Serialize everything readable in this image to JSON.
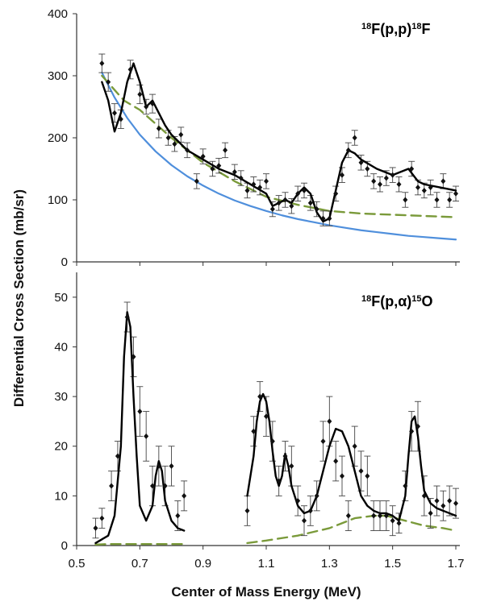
{
  "chart_data": [
    {
      "type": "scatter",
      "id": "top",
      "title": "18F(p,p)18F",
      "title_parts": [
        {
          "text": "18",
          "sup": true
        },
        {
          "text": "F(p,p)",
          "sup": false
        },
        {
          "text": "18",
          "sup": true
        },
        {
          "text": "F",
          "sup": false
        }
      ],
      "xlim": [
        0.5,
        1.7
      ],
      "ylim": [
        0,
        400
      ],
      "yticks": [
        "0",
        "100",
        "200",
        "300",
        "400"
      ],
      "colors": {
        "points": "#111111",
        "fit": "#000000",
        "dashed": "#7a9a3a",
        "coulomb": "#4f8fdc"
      },
      "points": {
        "x": [
          0.58,
          0.6,
          0.62,
          0.64,
          0.67,
          0.7,
          0.72,
          0.74,
          0.76,
          0.79,
          0.81,
          0.83,
          0.85,
          0.88,
          0.9,
          0.93,
          0.95,
          0.97,
          1.0,
          1.02,
          1.04,
          1.06,
          1.08,
          1.1,
          1.12,
          1.14,
          1.16,
          1.18,
          1.2,
          1.22,
          1.24,
          1.26,
          1.28,
          1.3,
          1.32,
          1.34,
          1.36,
          1.38,
          1.4,
          1.42,
          1.44,
          1.46,
          1.48,
          1.5,
          1.52,
          1.54,
          1.56,
          1.58,
          1.6,
          1.62,
          1.64,
          1.66,
          1.68,
          1.7
        ],
        "y": [
          320,
          290,
          240,
          230,
          310,
          270,
          250,
          255,
          215,
          200,
          190,
          205,
          180,
          130,
          170,
          150,
          155,
          180,
          145,
          135,
          115,
          125,
          120,
          130,
          85,
          95,
          100,
          90,
          110,
          115,
          95,
          85,
          70,
          70,
          110,
          140,
          180,
          200,
          160,
          150,
          130,
          125,
          135,
          140,
          125,
          100,
          150,
          120,
          115,
          120,
          100,
          130,
          100,
          110
        ],
        "err": [
          15,
          15,
          15,
          15,
          15,
          15,
          12,
          15,
          15,
          12,
          12,
          12,
          12,
          12,
          12,
          12,
          12,
          12,
          12,
          12,
          12,
          12,
          12,
          12,
          12,
          12,
          12,
          12,
          12,
          12,
          12,
          12,
          12,
          12,
          12,
          12,
          12,
          12,
          12,
          12,
          12,
          12,
          12,
          12,
          12,
          12,
          12,
          12,
          12,
          12,
          12,
          12,
          12,
          12
        ]
      },
      "fit_curve": {
        "x": [
          0.58,
          0.6,
          0.62,
          0.64,
          0.66,
          0.68,
          0.7,
          0.72,
          0.74,
          0.76,
          0.78,
          0.8,
          0.85,
          0.9,
          0.95,
          1.0,
          1.05,
          1.1,
          1.12,
          1.14,
          1.16,
          1.18,
          1.2,
          1.22,
          1.24,
          1.26,
          1.28,
          1.3,
          1.32,
          1.34,
          1.36,
          1.38,
          1.4,
          1.45,
          1.5,
          1.55,
          1.58,
          1.6,
          1.65,
          1.7
        ],
        "y": [
          290,
          260,
          210,
          240,
          290,
          320,
          290,
          250,
          260,
          240,
          220,
          205,
          180,
          165,
          150,
          140,
          125,
          110,
          90,
          95,
          100,
          95,
          110,
          120,
          110,
          80,
          65,
          70,
          115,
          160,
          180,
          175,
          165,
          150,
          140,
          150,
          130,
          125,
          120,
          115
        ]
      },
      "dashed_curve": {
        "x": [
          0.58,
          0.65,
          0.7,
          0.8,
          0.9,
          1.0,
          1.1,
          1.2,
          1.3,
          1.4,
          1.5,
          1.6,
          1.7
        ],
        "y": [
          300,
          260,
          245,
          200,
          160,
          130,
          105,
          92,
          82,
          78,
          76,
          74,
          72
        ]
      },
      "coulomb_curve": {
        "x": [
          0.58,
          0.62,
          0.66,
          0.7,
          0.75,
          0.8,
          0.85,
          0.9,
          0.95,
          1.0,
          1.05,
          1.1,
          1.15,
          1.2,
          1.25,
          1.3,
          1.35,
          1.4,
          1.45,
          1.5,
          1.55,
          1.6,
          1.65,
          1.7
        ],
        "y": [
          305,
          265,
          232,
          205,
          178,
          156,
          138,
          123,
          110,
          99,
          90,
          82,
          75,
          69,
          64,
          59,
          55,
          51,
          48,
          45,
          42,
          40,
          38,
          36
        ]
      }
    },
    {
      "type": "scatter",
      "id": "bottom",
      "title": "18F(p,α)15O",
      "title_parts": [
        {
          "text": "18",
          "sup": true
        },
        {
          "text": "F(p,α)",
          "sup": false
        },
        {
          "text": "15",
          "sup": true
        },
        {
          "text": "O",
          "sup": false
        }
      ],
      "xlim": [
        0.5,
        1.7
      ],
      "ylim": [
        0,
        55
      ],
      "yticks": [
        "0",
        "10",
        "20",
        "30",
        "40",
        "50"
      ],
      "xticks": [
        "0.5",
        "0.7",
        "0.9",
        "1.1",
        "1.3",
        "1.5",
        "1.7"
      ],
      "xlabel": "Center of Mass Energy (MeV)",
      "colors": {
        "points": "#111111",
        "fit": "#000000",
        "dashed": "#7a9a3a"
      },
      "points": {
        "x": [
          0.56,
          0.58,
          0.61,
          0.63,
          0.66,
          0.68,
          0.7,
          0.72,
          0.74,
          0.76,
          0.78,
          0.8,
          0.82,
          0.84,
          1.04,
          1.06,
          1.08,
          1.1,
          1.12,
          1.14,
          1.16,
          1.18,
          1.2,
          1.22,
          1.24,
          1.26,
          1.28,
          1.3,
          1.32,
          1.34,
          1.36,
          1.38,
          1.4,
          1.42,
          1.44,
          1.46,
          1.48,
          1.5,
          1.52,
          1.54,
          1.56,
          1.58,
          1.6,
          1.62,
          1.64,
          1.66,
          1.68,
          1.7
        ],
        "y": [
          3.5,
          5.5,
          12,
          18,
          46,
          38,
          27,
          22,
          12,
          16,
          12,
          16,
          6,
          10,
          7,
          23,
          30,
          26,
          21,
          13,
          18,
          16,
          9,
          5,
          7,
          10,
          21,
          25,
          17,
          14,
          6,
          20,
          15,
          14,
          6,
          6,
          6,
          5,
          4.5,
          12,
          23,
          24,
          10,
          6.5,
          9,
          8,
          9,
          8.5
        ],
        "err": [
          2,
          2,
          3,
          3,
          3,
          4,
          5,
          5,
          4,
          4,
          4,
          4,
          3,
          3,
          3,
          3,
          3,
          4,
          4,
          3,
          3,
          4,
          3,
          3,
          3,
          3,
          4,
          5,
          4,
          4,
          3,
          4,
          4,
          4,
          3,
          3,
          3,
          3,
          2,
          3,
          4,
          5,
          4,
          3,
          3,
          3,
          3,
          3
        ]
      },
      "fit_curve_low": {
        "x": [
          0.56,
          0.6,
          0.62,
          0.64,
          0.65,
          0.66,
          0.67,
          0.68,
          0.69,
          0.7,
          0.72,
          0.74,
          0.75,
          0.76,
          0.77,
          0.78,
          0.8,
          0.82,
          0.84
        ],
        "y": [
          0.5,
          2,
          6,
          20,
          38,
          47,
          44,
          30,
          18,
          8,
          5,
          8,
          14,
          17,
          15,
          9,
          5,
          3.5,
          3
        ]
      },
      "fit_curve_high": {
        "x": [
          1.04,
          1.06,
          1.07,
          1.08,
          1.09,
          1.1,
          1.11,
          1.12,
          1.13,
          1.14,
          1.15,
          1.16,
          1.17,
          1.18,
          1.2,
          1.22,
          1.24,
          1.26,
          1.28,
          1.3,
          1.32,
          1.34,
          1.36,
          1.38,
          1.4,
          1.42,
          1.44,
          1.46,
          1.48,
          1.5,
          1.52,
          1.54,
          1.55,
          1.56,
          1.57,
          1.58,
          1.59,
          1.6,
          1.62,
          1.64,
          1.66,
          1.68,
          1.7
        ],
        "y": [
          10,
          18,
          25,
          29,
          30.5,
          29,
          25,
          19,
          14,
          12,
          14,
          18.5,
          16,
          12,
          8,
          6.5,
          7,
          10,
          15,
          20,
          23.5,
          23,
          20,
          15,
          10,
          8,
          7,
          6.5,
          6.5,
          6,
          5,
          10,
          18,
          25,
          26,
          22,
          16,
          11,
          8.5,
          7.5,
          7,
          6.5,
          6
        ]
      },
      "dashed_curve_low": {
        "x": [
          0.56,
          0.6,
          0.7,
          0.8,
          0.84
        ],
        "y": [
          0.2,
          0.3,
          0.3,
          0.3,
          0.3
        ]
      },
      "dashed_curve_high": {
        "x": [
          1.04,
          1.1,
          1.2,
          1.3,
          1.38,
          1.44,
          1.48,
          1.54,
          1.6,
          1.66,
          1.7
        ],
        "y": [
          0.5,
          1,
          2,
          3.5,
          5.5,
          6,
          6,
          5,
          4,
          3.5,
          3
        ]
      }
    }
  ],
  "shared": {
    "ylabel": "Differential Cross Section (mb/sr)"
  }
}
